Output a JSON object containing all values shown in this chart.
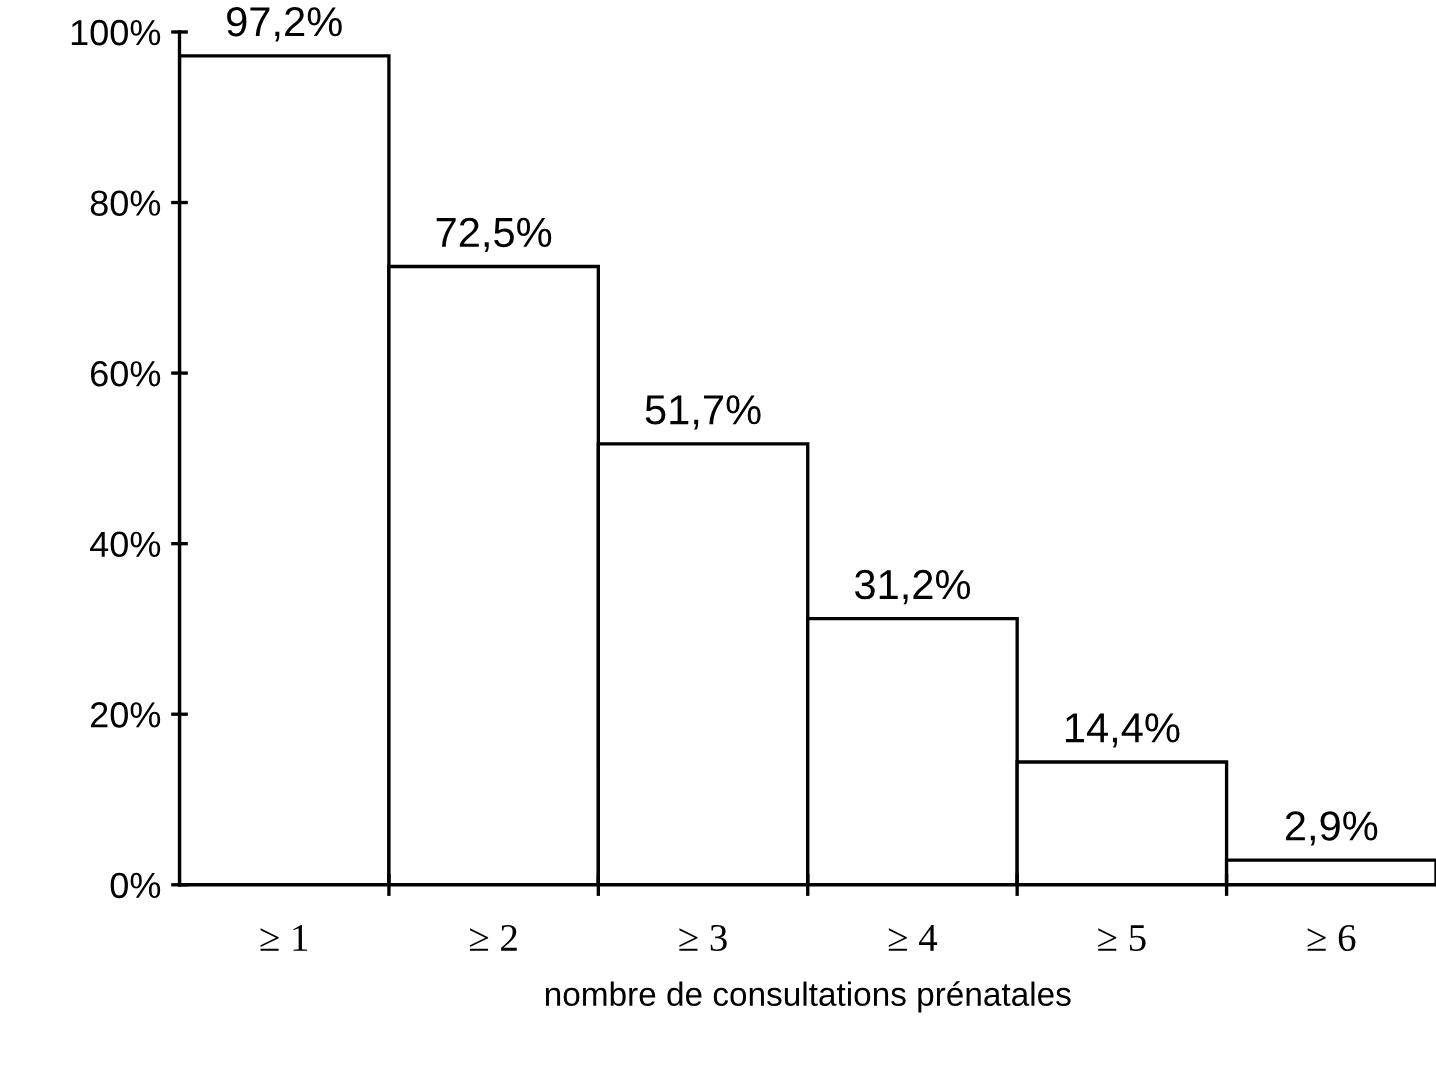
{
  "chart_data": {
    "type": "bar",
    "xlabel": "nombre de consultations prénatales",
    "categories": [
      "≥ 1",
      "≥ 2",
      "≥ 3",
      "≥ 4",
      "≥ 5",
      "≥ 6"
    ],
    "values": [
      97.2,
      72.5,
      51.7,
      31.2,
      14.4,
      2.9
    ],
    "value_labels": [
      "97,2%",
      "72,5%",
      "51,7%",
      "31,2%",
      "14,4%",
      "2,9%"
    ],
    "color": "#ffffff",
    "ylim": [
      0,
      100
    ],
    "yticks": [
      {
        "value": 0,
        "label": "0%"
      },
      {
        "value": 20,
        "label": "20%"
      },
      {
        "value": 40,
        "label": "40%"
      },
      {
        "value": 60,
        "label": "60%"
      },
      {
        "value": 80,
        "label": "80%"
      },
      {
        "value": 100,
        "label": "100%"
      }
    ],
    "grid": false
  }
}
